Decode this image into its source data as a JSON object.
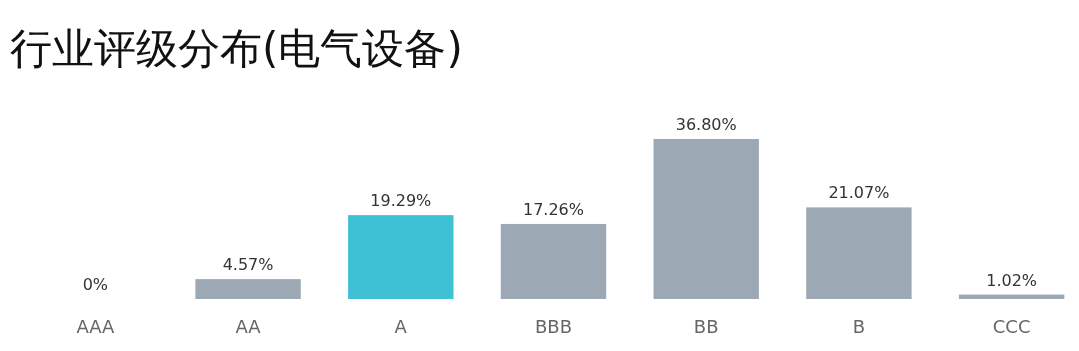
{
  "chart_data": {
    "type": "bar",
    "title": "行业评级分布(电气设备)",
    "categories": [
      "AAA",
      "AA",
      "A",
      "BBB",
      "BB",
      "B",
      "CCC"
    ],
    "values": [
      0,
      4.57,
      19.29,
      17.26,
      36.8,
      21.07,
      1.02
    ],
    "value_labels": [
      "0%",
      "4.57%",
      "19.29%",
      "17.26%",
      "36.80%",
      "21.07%",
      "1.02%"
    ],
    "colors": [
      "#9ca8b3",
      "#9ca8b3",
      "#3fc1d5",
      "#9ca8b3",
      "#9ca8b3",
      "#9ca8b3",
      "#9ca8b3"
    ]
  }
}
